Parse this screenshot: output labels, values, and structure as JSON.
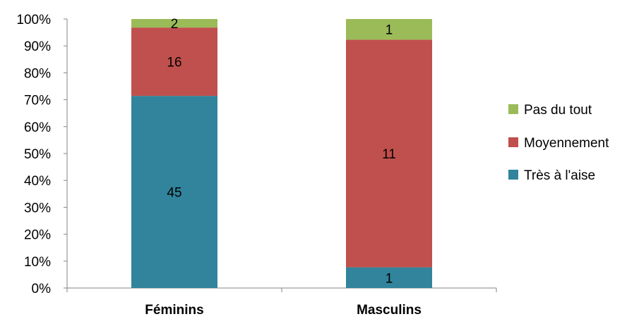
{
  "chart_data": {
    "type": "bar",
    "stacked": true,
    "percent_stacked": true,
    "categories": [
      "Féminins",
      "Masculins"
    ],
    "series": [
      {
        "name": "Très à l'aise",
        "values": [
          45,
          1
        ],
        "color": "#31849B"
      },
      {
        "name": "Moyennement",
        "values": [
          16,
          11
        ],
        "color": "#C0504D"
      },
      {
        "name": "Pas du tout",
        "values": [
          2,
          1
        ],
        "color": "#9BBB59"
      }
    ],
    "y_ticks": [
      "0%",
      "10%",
      "20%",
      "30%",
      "40%",
      "50%",
      "60%",
      "70%",
      "80%",
      "90%",
      "100%"
    ],
    "ylim": [
      0,
      100
    ],
    "grid": false,
    "legend_position": "right"
  }
}
